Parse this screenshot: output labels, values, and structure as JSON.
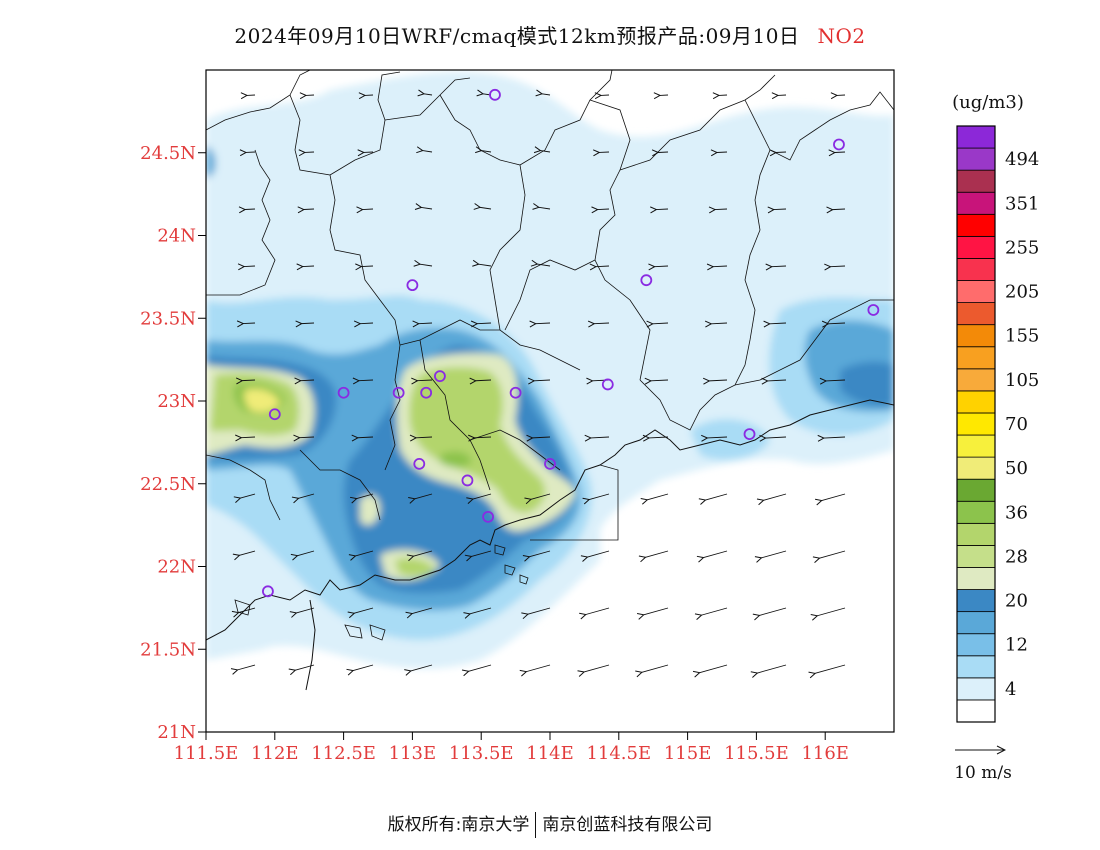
{
  "header": {
    "title": "2024年09月10日WRF/cmaq模式12km预报产品:09月10日",
    "species": "NO2"
  },
  "map": {
    "lon_range": [
      111.5,
      116.5
    ],
    "lat_range": [
      21.0,
      25.0
    ],
    "lat_ticks": [
      {
        "value": 24.5,
        "label": "24.5N"
      },
      {
        "value": 24.0,
        "label": "24N"
      },
      {
        "value": 23.5,
        "label": "23.5N"
      },
      {
        "value": 23.0,
        "label": "23N"
      },
      {
        "value": 22.5,
        "label": "22.5N"
      },
      {
        "value": 22.0,
        "label": "22N"
      },
      {
        "value": 21.5,
        "label": "21.5N"
      },
      {
        "value": 21.0,
        "label": "21N"
      }
    ],
    "lon_ticks": [
      {
        "value": 111.5,
        "label": "111.5E"
      },
      {
        "value": 112.0,
        "label": "112E"
      },
      {
        "value": 112.5,
        "label": "112.5E"
      },
      {
        "value": 113.0,
        "label": "113E"
      },
      {
        "value": 113.5,
        "label": "113.5E"
      },
      {
        "value": 114.0,
        "label": "114E"
      },
      {
        "value": 114.5,
        "label": "114.5E"
      },
      {
        "value": 115.0,
        "label": "115E"
      },
      {
        "value": 115.5,
        "label": "115.5E"
      },
      {
        "value": 116.0,
        "label": "116E"
      }
    ],
    "stations": [
      {
        "lon": 113.6,
        "lat": 24.85
      },
      {
        "lon": 116.1,
        "lat": 24.55
      },
      {
        "lon": 113.0,
        "lat": 23.7
      },
      {
        "lon": 114.7,
        "lat": 23.73
      },
      {
        "lon": 116.35,
        "lat": 23.55
      },
      {
        "lon": 113.2,
        "lat": 23.15
      },
      {
        "lon": 112.9,
        "lat": 23.05
      },
      {
        "lon": 112.5,
        "lat": 23.05
      },
      {
        "lon": 113.1,
        "lat": 23.05
      },
      {
        "lon": 113.75,
        "lat": 23.05
      },
      {
        "lon": 114.42,
        "lat": 23.1
      },
      {
        "lon": 112.0,
        "lat": 22.92
      },
      {
        "lon": 115.45,
        "lat": 22.8
      },
      {
        "lon": 113.05,
        "lat": 22.62
      },
      {
        "lon": 114.0,
        "lat": 22.62
      },
      {
        "lon": 113.4,
        "lat": 22.52
      },
      {
        "lon": 113.55,
        "lat": 22.3
      },
      {
        "lon": 111.95,
        "lat": 21.85
      }
    ],
    "wind_reference": {
      "label": "10 m/s"
    },
    "colors": {
      "land_border": "#111111",
      "frame": "#000000",
      "station": "#8a2be2",
      "vector": "#111111"
    }
  },
  "chart_data": {
    "type": "heatmap",
    "title": "2024年09月10日WRF/cmaq模式12km预报产品:09月10日",
    "species": "NO2",
    "unit": "(ug/m3)",
    "colorbar": [
      {
        "label": "",
        "color": "#ffffff"
      },
      {
        "label": "4",
        "color": "#dcf0fa"
      },
      {
        "label": "",
        "color": "#a9dcf5"
      },
      {
        "label": "12",
        "color": "#79bfe8"
      },
      {
        "label": "",
        "color": "#5aa8d8"
      },
      {
        "label": "20",
        "color": "#3b88c4"
      },
      {
        "label": "",
        "color": "#dfeac2"
      },
      {
        "label": "28",
        "color": "#c5df8a"
      },
      {
        "label": "",
        "color": "#b3d56c"
      },
      {
        "label": "36",
        "color": "#8cc34c"
      },
      {
        "label": "",
        "color": "#6aa832"
      },
      {
        "label": "50",
        "color": "#f0ec78"
      },
      {
        "label": "",
        "color": "#f7f03c"
      },
      {
        "label": "70",
        "color": "#ffe800"
      },
      {
        "label": "",
        "color": "#ffd200"
      },
      {
        "label": "105",
        "color": "#f8aa3a"
      },
      {
        "label": "",
        "color": "#f8a020"
      },
      {
        "label": "155",
        "color": "#f38a08"
      },
      {
        "label": "",
        "color": "#ec5a2e"
      },
      {
        "label": "205",
        "color": "#ff6c6c"
      },
      {
        "label": "",
        "color": "#f8324e"
      },
      {
        "label": "255",
        "color": "#ff1444"
      },
      {
        "label": "",
        "color": "#ff0000"
      },
      {
        "label": "351",
        "color": "#c8147a"
      },
      {
        "label": "",
        "color": "#aa3050"
      },
      {
        "label": "494",
        "color": "#9a38c8"
      },
      {
        "label": "",
        "color": "#8c28d8"
      }
    ]
  },
  "footer": {
    "copyright_prefix": "版权所有:",
    "org1": "南京大学",
    "org2": "南京创蓝科技有限公司"
  }
}
